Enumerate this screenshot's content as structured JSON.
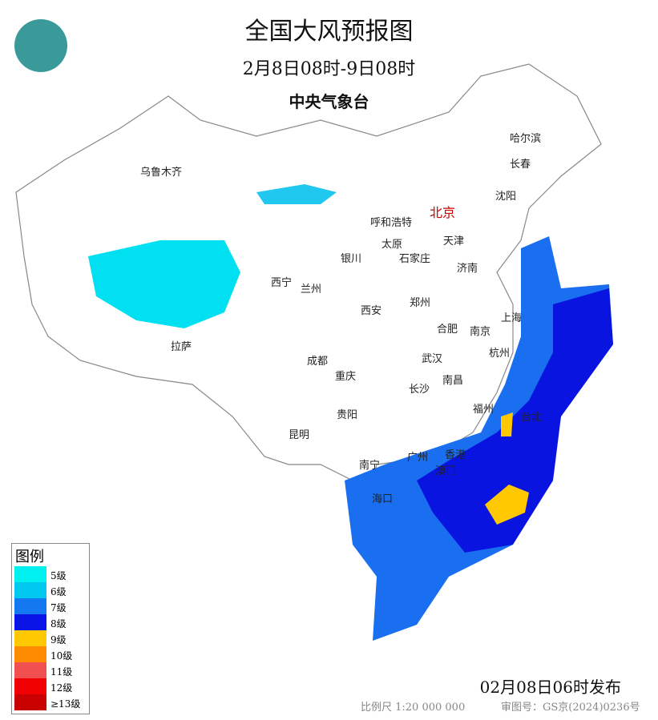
{
  "header": {
    "title": "全国大风预报图",
    "period": "2月8日08时-9日08时",
    "organization": "中央气象台"
  },
  "cities": [
    {
      "name": "乌鲁木齐"
    },
    {
      "name": "哈尔滨"
    },
    {
      "name": "长春"
    },
    {
      "name": "沈阳"
    },
    {
      "name": "北京",
      "capital": true
    },
    {
      "name": "呼和浩特"
    },
    {
      "name": "天津"
    },
    {
      "name": "太原"
    },
    {
      "name": "石家庄"
    },
    {
      "name": "银川"
    },
    {
      "name": "济南"
    },
    {
      "name": "西宁"
    },
    {
      "name": "兰州"
    },
    {
      "name": "郑州"
    },
    {
      "name": "西安"
    },
    {
      "name": "合肥"
    },
    {
      "name": "南京"
    },
    {
      "name": "上海"
    },
    {
      "name": "杭州"
    },
    {
      "name": "拉萨"
    },
    {
      "name": "成都"
    },
    {
      "name": "武汉"
    },
    {
      "name": "重庆"
    },
    {
      "name": "南昌"
    },
    {
      "name": "长沙"
    },
    {
      "name": "贵阳"
    },
    {
      "name": "福州"
    },
    {
      "name": "台北"
    },
    {
      "name": "昆明"
    },
    {
      "name": "南宁"
    },
    {
      "name": "广州"
    },
    {
      "name": "香港"
    },
    {
      "name": "澳门"
    },
    {
      "name": "海口"
    }
  ],
  "legend": {
    "title": "图例",
    "items": [
      {
        "label": "5级",
        "color": "#00f0f0"
      },
      {
        "label": "6级",
        "color": "#00c8f0"
      },
      {
        "label": "7级",
        "color": "#1478f0"
      },
      {
        "label": "8级",
        "color": "#0a14e6"
      },
      {
        "label": "9级",
        "color": "#ffc800"
      },
      {
        "label": "10级",
        "color": "#ff8c00"
      },
      {
        "label": "11级",
        "color": "#f05050"
      },
      {
        "label": "12级",
        "color": "#f00000"
      },
      {
        "label": "≥13级",
        "color": "#c80000"
      }
    ]
  },
  "footer": {
    "issued": "02月08日06时发布",
    "scale": "比例尺 1:20 000 000",
    "approval": "审图号：GS京(2024)0236号"
  }
}
